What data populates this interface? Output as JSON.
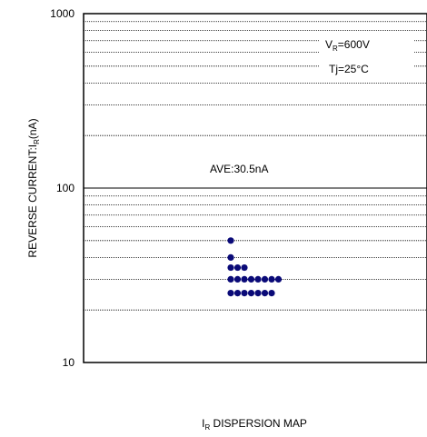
{
  "chart_data": {
    "type": "scatter",
    "title": "",
    "xlabel_main": "I",
    "xlabel_sub": "R",
    "xlabel_rest": " DISPERSION MAP",
    "ylabel_main": "REVERSE CURRENT:I",
    "ylabel_sub": "R",
    "ylabel_rest": "(nA)",
    "y_scale": "log",
    "ylim": [
      10,
      1000
    ],
    "y_ticks": [
      {
        "value": 10,
        "label": "10"
      },
      {
        "value": 100,
        "label": "100"
      },
      {
        "value": 1000,
        "label": "1000"
      }
    ],
    "grid": true,
    "grid_style": "dotted",
    "annotations": {
      "condition_v_main": "V",
      "condition_v_sub": "R",
      "condition_v_rest": "=600V",
      "condition_t": "Tj=25°C",
      "average": "AVE:30.5nA"
    },
    "point_color": "#0a0a78",
    "points": [
      {
        "column": 0,
        "y": 50
      },
      {
        "column": 0,
        "y": 40
      },
      {
        "column": 0,
        "y": 35
      },
      {
        "column": 1,
        "y": 35
      },
      {
        "column": 2,
        "y": 35
      },
      {
        "column": 0,
        "y": 30
      },
      {
        "column": 1,
        "y": 30
      },
      {
        "column": 2,
        "y": 30
      },
      {
        "column": 3,
        "y": 30
      },
      {
        "column": 4,
        "y": 30
      },
      {
        "column": 5,
        "y": 30
      },
      {
        "column": 6,
        "y": 30
      },
      {
        "column": 7,
        "y": 30
      },
      {
        "column": 0,
        "y": 25
      },
      {
        "column": 1,
        "y": 25
      },
      {
        "column": 2,
        "y": 25
      },
      {
        "column": 3,
        "y": 25
      },
      {
        "column": 4,
        "y": 25
      },
      {
        "column": 5,
        "y": 25
      },
      {
        "column": 6,
        "y": 25
      }
    ]
  }
}
